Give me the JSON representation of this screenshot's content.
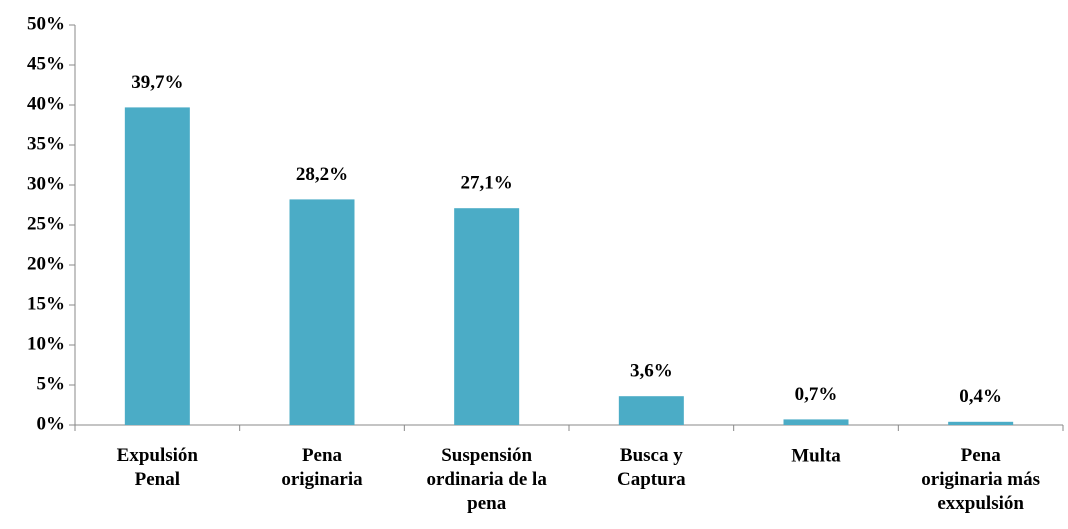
{
  "chart_data": {
    "type": "bar",
    "categories": [
      "Expulsión\nPenal",
      "Pena\noriginaria",
      "Suspensión\nordinaria de la\npena",
      "Busca y\nCaptura",
      "Multa",
      "Pena\noriginaria más\nexxpulsión"
    ],
    "values": [
      39.7,
      28.2,
      27.1,
      3.6,
      0.7,
      0.4
    ],
    "value_labels": [
      "39,7%",
      "28,2%",
      "27,1%",
      "3,6%",
      "0,7%",
      "0,4%"
    ],
    "color": "#4bacc6",
    "ylim": [
      0,
      50
    ],
    "yticks": [
      {
        "value": 0,
        "label": "0%"
      },
      {
        "value": 5,
        "label": "5%"
      },
      {
        "value": 10,
        "label": "10%"
      },
      {
        "value": 15,
        "label": "15%"
      },
      {
        "value": 20,
        "label": "20%"
      },
      {
        "value": 25,
        "label": "25%"
      },
      {
        "value": 30,
        "label": "30%"
      },
      {
        "value": 35,
        "label": "35%"
      },
      {
        "value": 40,
        "label": "40%"
      },
      {
        "value": 45,
        "label": "45%"
      },
      {
        "value": 50,
        "label": "50%"
      }
    ],
    "grid": false
  }
}
